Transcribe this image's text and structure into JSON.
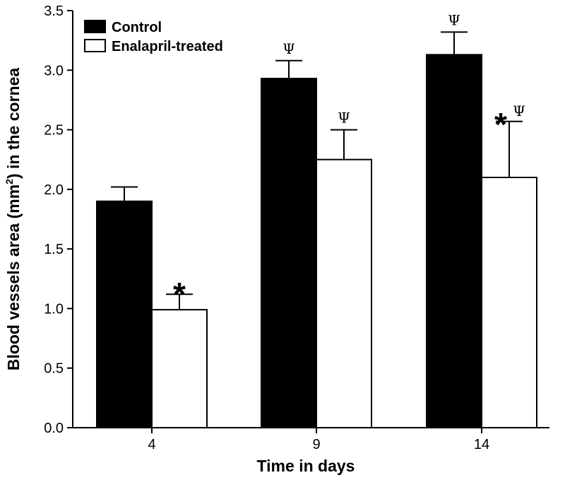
{
  "chart_data": {
    "type": "bar",
    "title": "",
    "xlabel": "Time in days",
    "ylabel": "Blood vessels area (mm²) in the cornea",
    "ylabel_parts": {
      "pre": "Blood vessels area (mm",
      "sup": "2",
      "post": ") in the cornea"
    },
    "ylim": [
      0,
      3.5
    ],
    "yticks": [
      "0.0",
      "0.5",
      "1.0",
      "1.5",
      "2.0",
      "2.5",
      "3.0",
      "3.5"
    ],
    "categories": [
      "4",
      "9",
      "14"
    ],
    "legend_position": "top-left",
    "series": [
      {
        "name": "Control",
        "fill": "#000000",
        "values": [
          1.9,
          2.93,
          3.13
        ],
        "errors": [
          0.12,
          0.15,
          0.19
        ]
      },
      {
        "name": "Enalapril-treated",
        "fill": "#ffffff",
        "values": [
          0.99,
          2.25,
          2.1
        ],
        "errors": [
          0.13,
          0.25,
          0.47
        ]
      }
    ],
    "annotations": [
      {
        "category": 0,
        "series": 1,
        "symbols": [
          "*"
        ]
      },
      {
        "category": 1,
        "series": 0,
        "symbols": [
          "Ψ"
        ]
      },
      {
        "category": 1,
        "series": 1,
        "symbols": [
          "Ψ"
        ]
      },
      {
        "category": 2,
        "series": 0,
        "symbols": [
          "Ψ"
        ]
      },
      {
        "category": 2,
        "series": 1,
        "symbols": [
          "*",
          "Ψ"
        ]
      }
    ]
  }
}
